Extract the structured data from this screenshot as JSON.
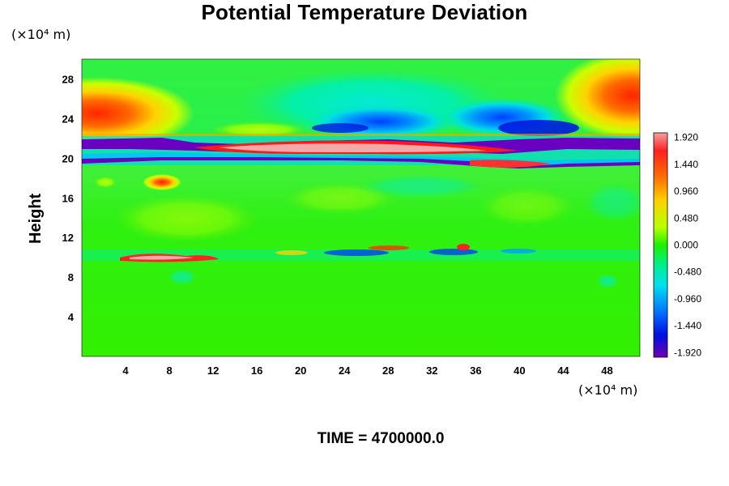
{
  "chart_data": {
    "type": "heatmap",
    "title": "Potential Temperature Deviation",
    "ylabel": "Height",
    "xlabel": "",
    "x_unit": "(×10⁴ m)",
    "y_unit": "(×10⁴ m)",
    "footer": "TIME = 4700000.0",
    "xlim": [
      0,
      51
    ],
    "ylim": [
      0,
      30
    ],
    "xticks": [
      4,
      8,
      12,
      16,
      20,
      24,
      28,
      32,
      36,
      40,
      44,
      48
    ],
    "yticks": [
      4,
      8,
      12,
      16,
      20,
      24,
      28
    ],
    "xtick_labels": [
      "4",
      "8",
      "12",
      "16",
      "20",
      "24",
      "28",
      "32",
      "36",
      "40",
      "44",
      "48"
    ],
    "ytick_labels": [
      "4",
      "8",
      "12",
      "16",
      "20",
      "24",
      "28"
    ],
    "colorbar": {
      "range": [
        -2.0,
        2.0
      ],
      "tick_values": [
        1.92,
        1.44,
        0.96,
        0.48,
        0.0,
        -0.48,
        -0.96,
        -1.44,
        -1.92
      ],
      "tick_labels": [
        "1.920",
        "1.440",
        "0.960",
        "0.480",
        "0.000",
        "-0.480",
        "-0.960",
        "-1.440",
        "-1.920"
      ],
      "colormap": "rainbow (purple → blue → cyan → green → yellow → orange → red → pink)"
    }
  }
}
